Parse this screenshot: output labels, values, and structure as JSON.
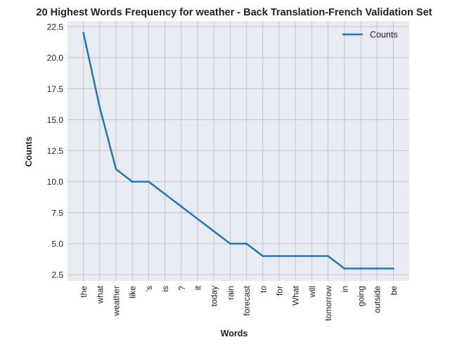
{
  "chart_data": {
    "type": "line",
    "title": "20 Highest Words Frequency for weather - Back Translation-French Validation Set",
    "xlabel": "Words",
    "ylabel": "Counts",
    "categories": [
      "the",
      "what",
      "weather",
      "like",
      "'s",
      "is",
      "?",
      "it",
      "today",
      "rain",
      "forecast",
      "to",
      "for",
      "What",
      "will",
      "tomorrow",
      "in",
      "going",
      "outside",
      "be"
    ],
    "series": [
      {
        "name": "Counts",
        "values": [
          22,
          16,
          11,
          10,
          10,
          9,
          8,
          7,
          6,
          5,
          5,
          4,
          4,
          4,
          4,
          4,
          3,
          3,
          3,
          3
        ]
      }
    ],
    "ylim": [
      2.0,
      22.95
    ],
    "yticks": [
      2.5,
      5.0,
      7.5,
      10.0,
      12.5,
      15.0,
      17.5,
      20.0,
      22.5
    ],
    "ytick_labels": [
      "2.5",
      "5.0",
      "7.5",
      "10.0",
      "12.5",
      "15.0",
      "17.5",
      "20.0",
      "22.5"
    ],
    "grid": true,
    "legend_position": "top-right",
    "colors": {
      "line": "#1f77b4",
      "plot_bg": "#eaeaf2",
      "grid": "#c0c0c8",
      "text": "#222222"
    }
  }
}
